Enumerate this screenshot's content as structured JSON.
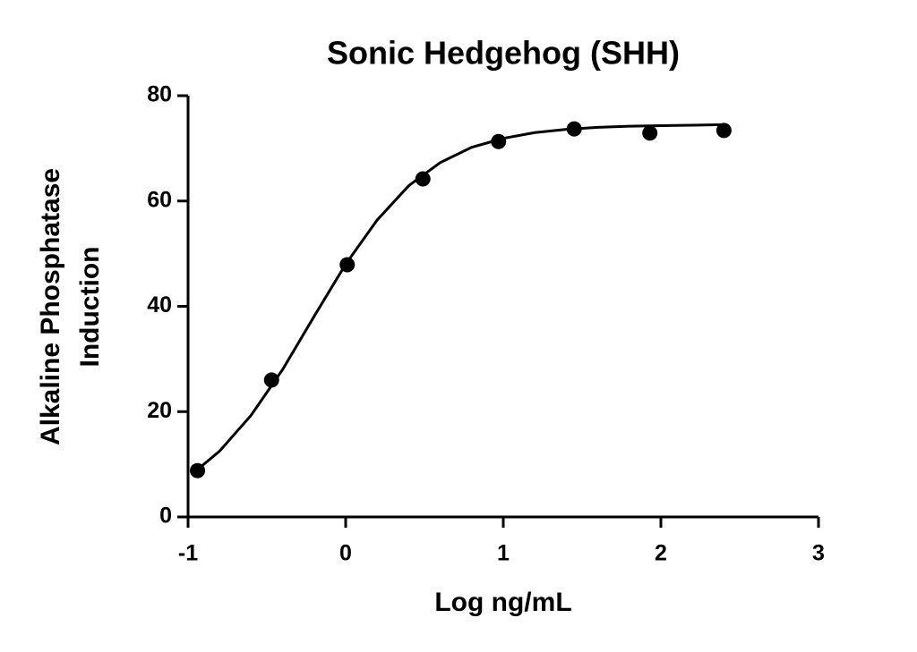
{
  "chart_data": {
    "type": "scatter",
    "title": "Sonic Hedgehog (SHH)",
    "xlabel": "Log ng/mL",
    "ylabel": [
      "Alkaline Phosphatase",
      "Induction"
    ],
    "xlim": [
      -1,
      3
    ],
    "xticks": [
      -1,
      0,
      1,
      2,
      3
    ],
    "ylim": [
      0,
      80
    ],
    "yticks": [
      0,
      20,
      40,
      60,
      80
    ],
    "series": [
      {
        "kind": "points",
        "color": "#000000",
        "x": [
          -0.94,
          -0.47,
          0.01,
          0.49,
          0.97,
          1.45,
          1.93,
          2.4
        ],
        "values": [
          8.8,
          26,
          47.9,
          64.2,
          71.3,
          73.7,
          72.9,
          73.4
        ]
      },
      {
        "kind": "line",
        "color": "#000000",
        "x": [
          -0.94,
          -0.8,
          -0.6,
          -0.4,
          -0.2,
          0,
          0.2,
          0.4,
          0.6,
          0.8,
          1.0,
          1.2,
          1.4,
          1.6,
          1.8,
          2.0,
          2.2,
          2.4
        ],
        "values": [
          9.0,
          12.5,
          19.3,
          28.0,
          38.1,
          48.0,
          56.4,
          62.9,
          67.3,
          70.2,
          71.9,
          73.0,
          73.6,
          74.0,
          74.2,
          74.3,
          74.4,
          74.5
        ]
      }
    ]
  }
}
